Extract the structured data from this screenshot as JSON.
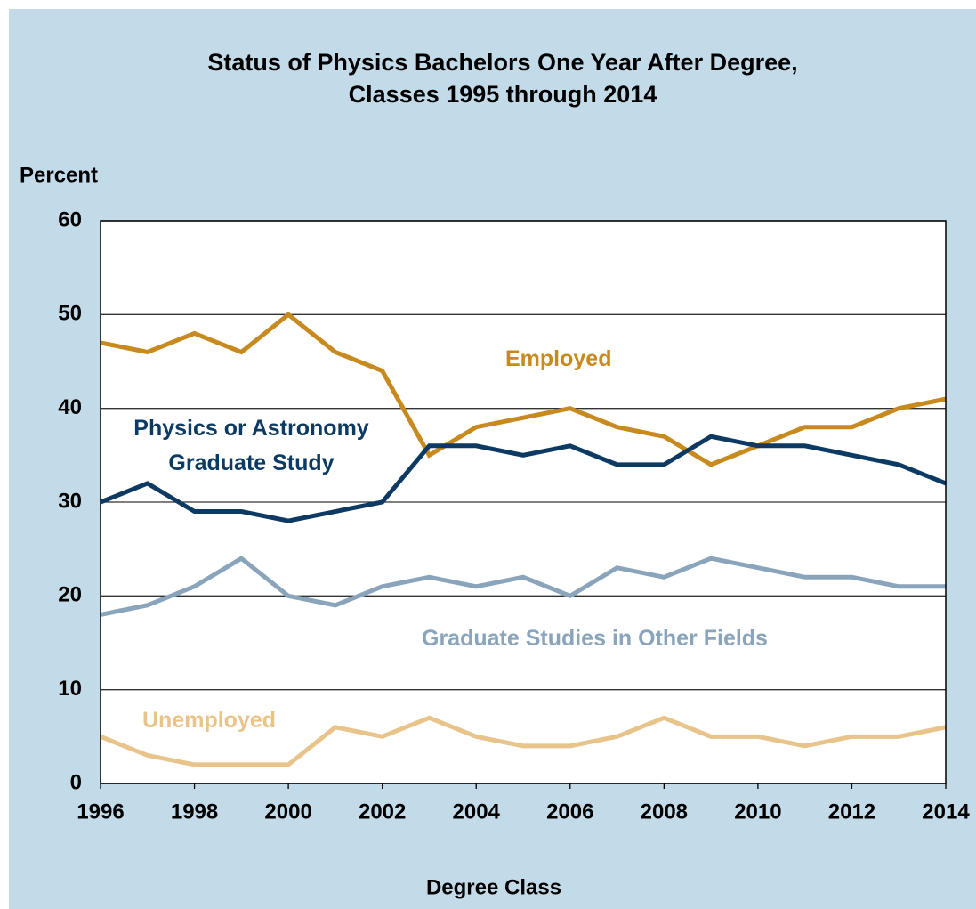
{
  "chart_data": {
    "type": "line",
    "title": [
      "Status of Physics Bachelors One Year After Degree,",
      "Classes 1995 through 2014"
    ],
    "y_label": "Percent",
    "x_label": "Degree Class",
    "x": [
      1996,
      1997,
      1998,
      1999,
      2000,
      2001,
      2002,
      2003,
      2004,
      2005,
      2006,
      2007,
      2008,
      2009,
      2010,
      2011,
      2012,
      2013,
      2014
    ],
    "series": [
      {
        "name": "Employed",
        "color": "#c8891e",
        "values": [
          47,
          46,
          48,
          46,
          50,
          46,
          44,
          35,
          38,
          39,
          40,
          38,
          37,
          34,
          36,
          38,
          38,
          40,
          41
        ]
      },
      {
        "name": "Physics or Astronomy Graduate Study",
        "color": "#0d3a62",
        "values": [
          30,
          32,
          29,
          29,
          28,
          29,
          30,
          36,
          36,
          35,
          36,
          34,
          34,
          37,
          36,
          36,
          35,
          34,
          32
        ]
      },
      {
        "name": "Graduate Studies in Other Fields",
        "color": "#8aa5bb",
        "values": [
          18,
          19,
          21,
          24,
          20,
          19,
          21,
          22,
          21,
          22,
          20,
          23,
          22,
          24,
          23,
          22,
          22,
          21,
          21
        ]
      },
      {
        "name": "Unemployed",
        "color": "#e8c48a",
        "values": [
          5,
          3,
          2,
          2,
          2,
          6,
          5,
          7,
          5,
          4,
          4,
          5,
          7,
          5,
          5,
          4,
          5,
          5,
          6
        ]
      }
    ],
    "xlim": [
      1996,
      2014
    ],
    "xticks": [
      1996,
      1998,
      2000,
      2002,
      2004,
      2006,
      2008,
      2010,
      2012,
      2014
    ],
    "ylim": [
      0,
      60
    ],
    "yticks": [
      0,
      10,
      20,
      30,
      40,
      50,
      60
    ],
    "grid": true
  }
}
